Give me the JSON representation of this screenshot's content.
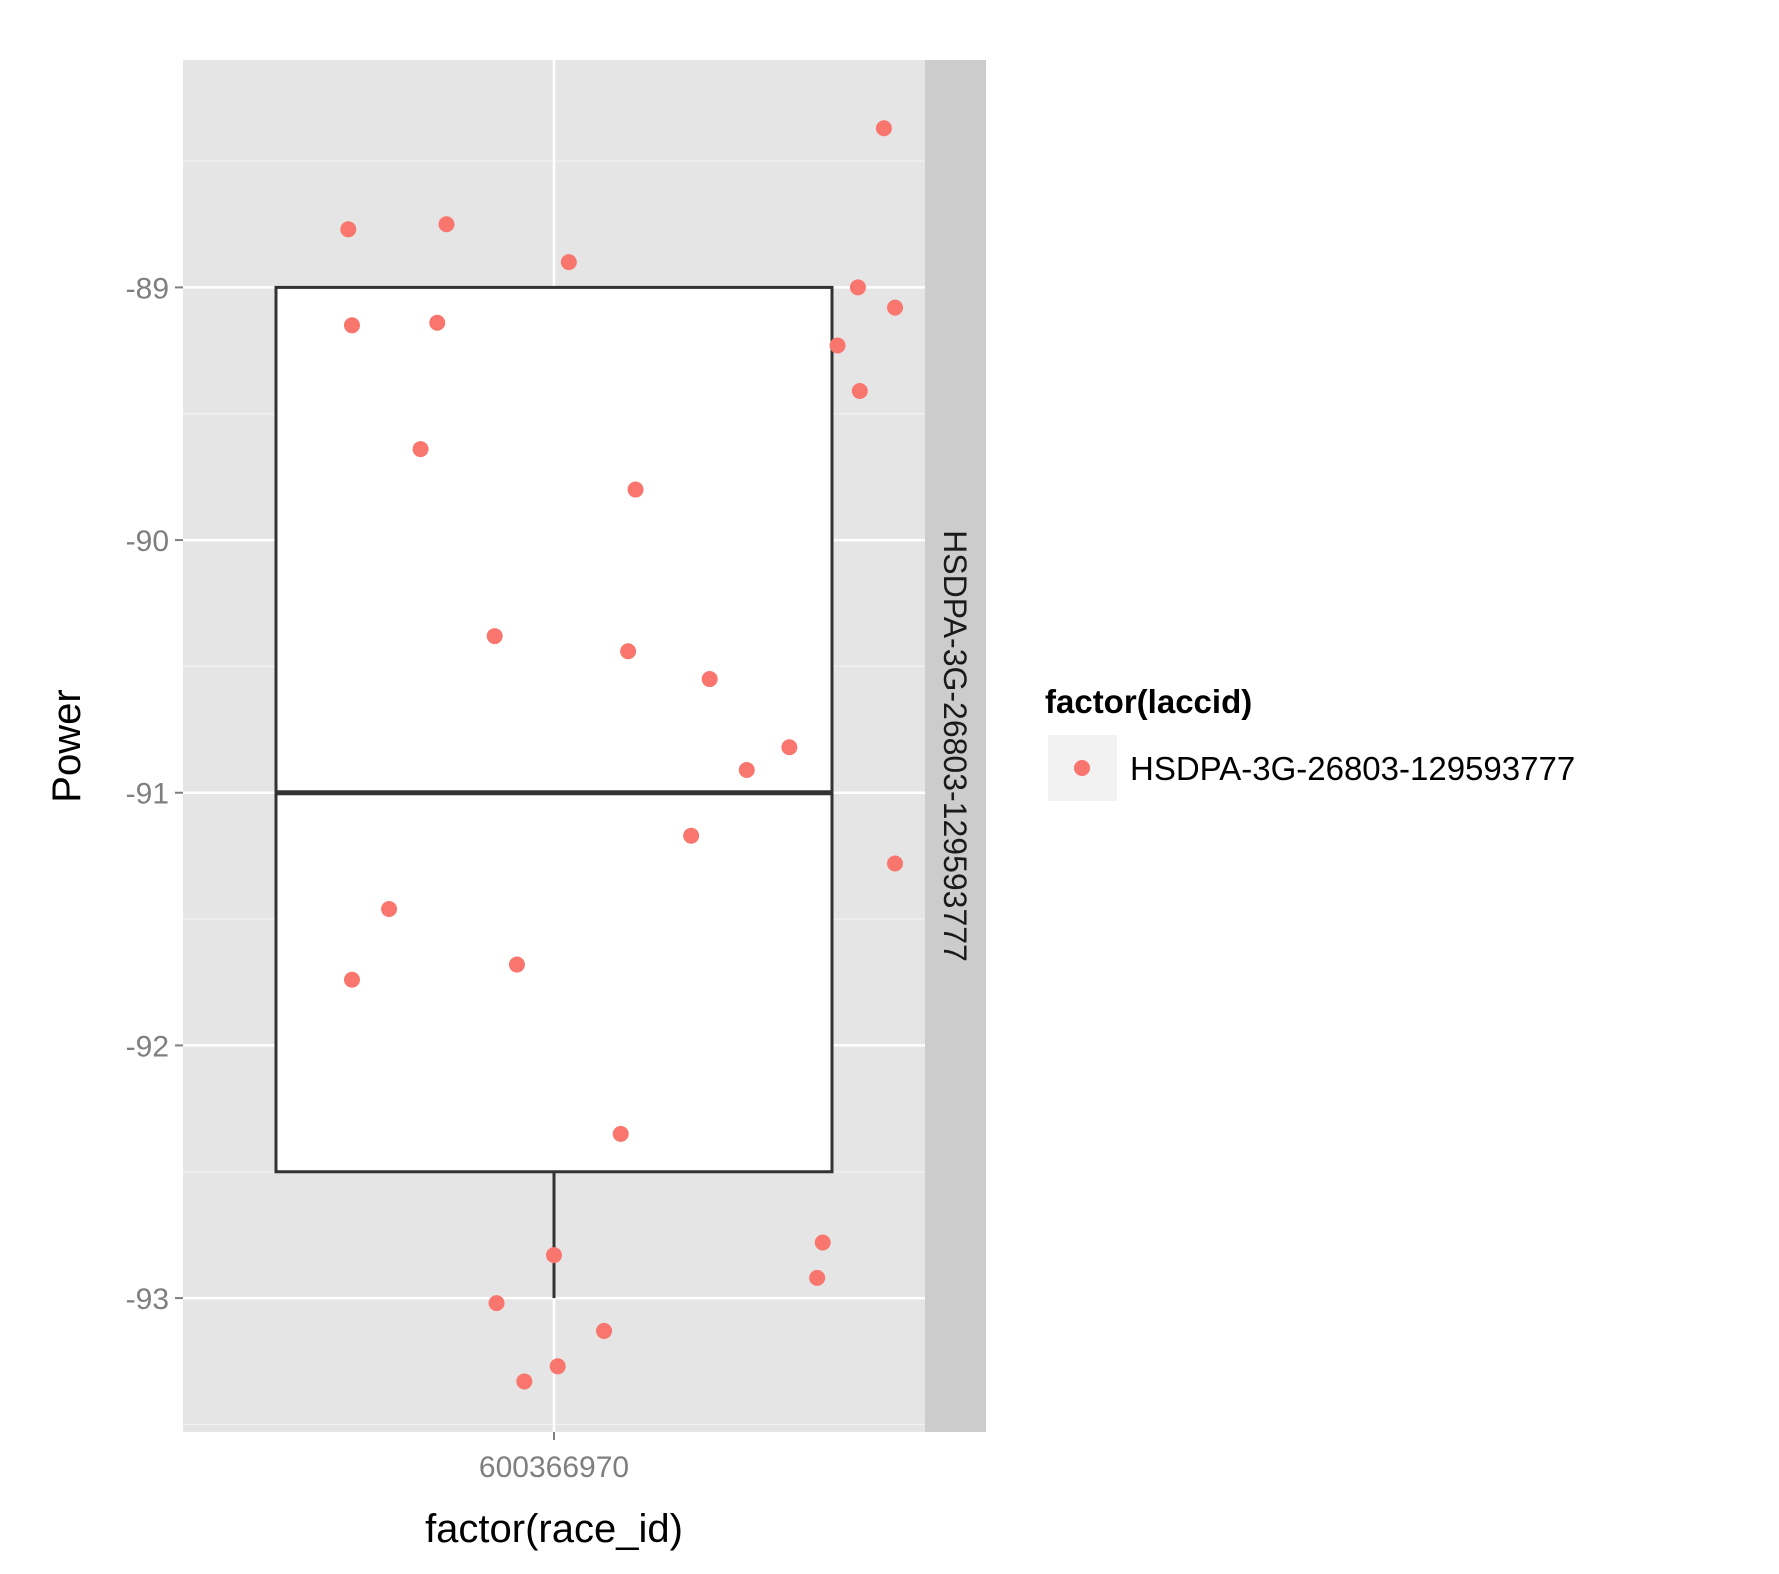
{
  "chart_data": {
    "type": "boxplot",
    "xlabel": "factor(race_id)",
    "ylabel": "Power",
    "categories": [
      "600366970"
    ],
    "facet_label": "HSDPA-3G-26803-129593777",
    "ylim": [
      -93.53,
      -88.1
    ],
    "yticks": [
      -89,
      -90,
      -91,
      -92,
      -93
    ],
    "yticks_labels": [
      "-89",
      "-90",
      "-91",
      "-92",
      "-93"
    ],
    "grid": true,
    "legend": {
      "title": "factor(laccid)",
      "entries": [
        "HSDPA-3G-26803-129593777"
      ],
      "position": "right"
    },
    "box": {
      "category": "600366970",
      "lower_whisker": -93,
      "q1": -92.5,
      "median": -91,
      "q3": -89,
      "upper_whisker": -89
    },
    "points": [
      {
        "x": -0.555,
        "y": -88.77
      },
      {
        "x": -0.545,
        "y": -89.15
      },
      {
        "x": -0.545,
        "y": -91.74
      },
      {
        "x": -0.445,
        "y": -91.46
      },
      {
        "x": -0.29,
        "y": -88.75
      },
      {
        "x": 0.04,
        "y": -88.9
      },
      {
        "x": -0.16,
        "y": -90.38
      },
      {
        "x": -0.315,
        "y": -89.14
      },
      {
        "x": -0.36,
        "y": -89.64
      },
      {
        "x": 0.22,
        "y": -89.8
      },
      {
        "x": 0.2,
        "y": -90.44
      },
      {
        "x": 0.42,
        "y": -90.55
      },
      {
        "x": 0.52,
        "y": -90.91
      },
      {
        "x": 0.635,
        "y": -90.82
      },
      {
        "x": 0.37,
        "y": -91.17
      },
      {
        "x": -0.1,
        "y": -91.68
      },
      {
        "x": 0.18,
        "y": -92.35
      },
      {
        "x": 0.0,
        "y": -92.83
      },
      {
        "x": -0.155,
        "y": -93.02
      },
      {
        "x": -0.08,
        "y": -93.33
      },
      {
        "x": 0.01,
        "y": -93.27
      },
      {
        "x": 0.135,
        "y": -93.13
      },
      {
        "x": 0.725,
        "y": -92.78
      },
      {
        "x": 0.71,
        "y": -92.92
      },
      {
        "x": 0.89,
        "y": -88.37
      },
      {
        "x": 0.82,
        "y": -89.0
      },
      {
        "x": 0.92,
        "y": -89.08
      },
      {
        "x": 0.765,
        "y": -89.23
      },
      {
        "x": 0.825,
        "y": -89.41
      },
      {
        "x": 0.92,
        "y": -91.28
      }
    ],
    "point_color": "#F8766D",
    "colors": {
      "panel_bg": "#E5E5E5",
      "grid_major": "#FFFFFF",
      "grid_minor": "#F2F2F2",
      "strip_bg": "#CCCCCC",
      "box_fill": "#FFFFFF",
      "box_line": "#333333",
      "legend_key_bg": "#F2F2F2"
    }
  }
}
